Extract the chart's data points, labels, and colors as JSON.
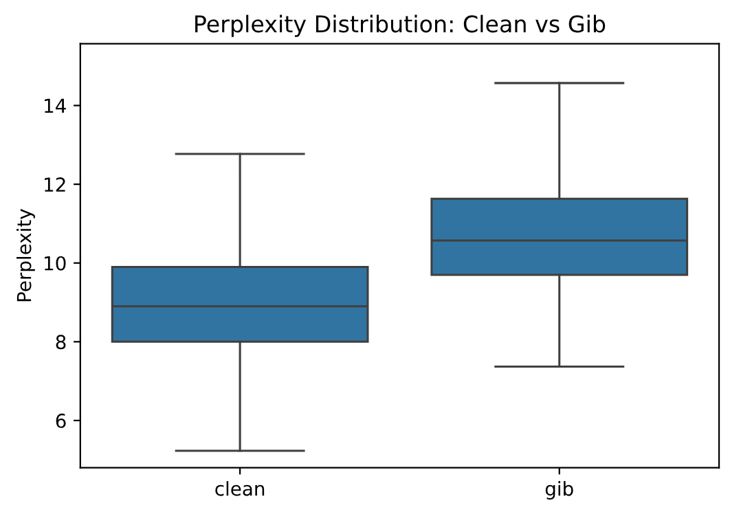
{
  "chart_data": {
    "type": "box",
    "title": "Perplexity Distribution: Clean vs Gib",
    "ylabel": "Perplexity",
    "categories": [
      "clean",
      "gib"
    ],
    "boxes": [
      {
        "low": 5.23,
        "q1": 8.0,
        "median": 8.9,
        "q3": 9.9,
        "high": 12.77
      },
      {
        "low": 7.37,
        "q1": 9.7,
        "median": 10.57,
        "q3": 11.63,
        "high": 14.57
      }
    ],
    "color": "#3274a1",
    "ylim": [
      4.8,
      15.57
    ],
    "yticks": [
      6,
      8,
      10,
      12,
      14
    ],
    "grid": false
  }
}
